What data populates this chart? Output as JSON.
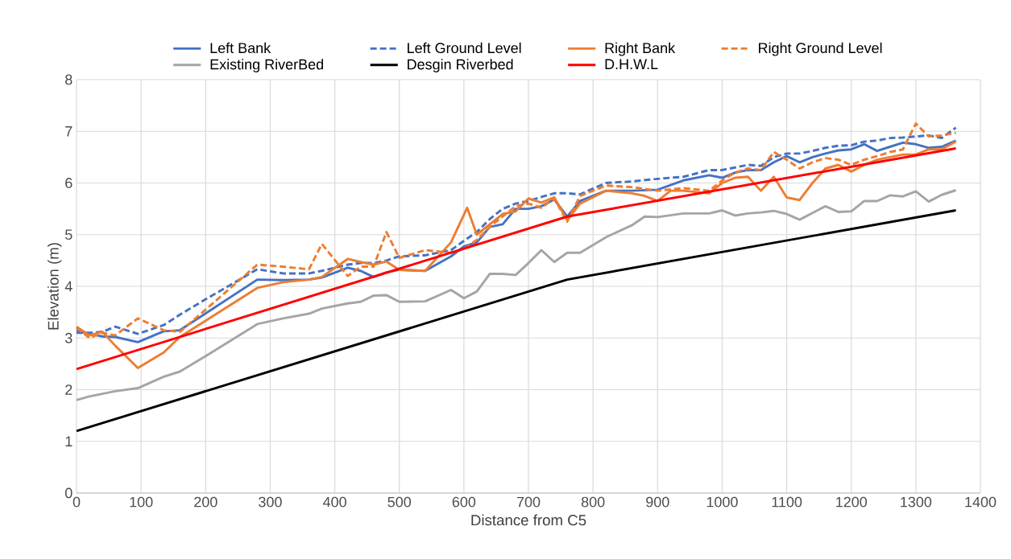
{
  "chart_data": {
    "type": "line",
    "xlabel": "Distance from C5",
    "ylabel": "Elevation (m)",
    "xlim": [
      0,
      1400
    ],
    "xticks": [
      0,
      100,
      200,
      300,
      400,
      500,
      600,
      700,
      800,
      900,
      1000,
      1100,
      1200,
      1300,
      1400
    ],
    "ylim": [
      0,
      8
    ],
    "yticks": [
      0,
      1,
      2,
      3,
      4,
      5,
      6,
      7,
      8
    ],
    "grid": true,
    "legend": "top",
    "marker": "none",
    "series": [
      {
        "name": "Left Bank",
        "color": "#4472c4",
        "line_style": "solid",
        "x": [
          0,
          20,
          40,
          60,
          95,
          135,
          160,
          280,
          320,
          360,
          380,
          420,
          440,
          460,
          480,
          500,
          540,
          580,
          600,
          620,
          640,
          660,
          680,
          700,
          720,
          740,
          760,
          780,
          820,
          860,
          900,
          940,
          980,
          1000,
          1020,
          1040,
          1060,
          1080,
          1100,
          1120,
          1140,
          1160,
          1180,
          1200,
          1220,
          1240,
          1260,
          1280,
          1300,
          1320,
          1340,
          1362
        ],
        "values": [
          3.15,
          3.08,
          3.03,
          3.02,
          2.92,
          3.13,
          3.15,
          4.13,
          4.12,
          4.13,
          4.17,
          4.36,
          4.3,
          4.18,
          4.27,
          4.32,
          4.3,
          4.58,
          4.77,
          4.85,
          5.15,
          5.2,
          5.5,
          5.5,
          5.55,
          5.68,
          5.35,
          5.65,
          5.85,
          5.85,
          5.87,
          6.05,
          6.15,
          6.1,
          6.2,
          6.25,
          6.25,
          6.4,
          6.52,
          6.4,
          6.5,
          6.57,
          6.63,
          6.65,
          6.75,
          6.62,
          6.7,
          6.78,
          6.75,
          6.68,
          6.7,
          6.82
        ]
      },
      {
        "name": "Left Ground Level",
        "color": "#4472c4",
        "line_style": "dashed",
        "x": [
          0,
          20,
          40,
          60,
          95,
          135,
          160,
          200,
          280,
          320,
          360,
          380,
          420,
          440,
          460,
          480,
          500,
          540,
          580,
          600,
          620,
          640,
          660,
          680,
          700,
          720,
          740,
          760,
          780,
          820,
          860,
          900,
          940,
          980,
          1000,
          1020,
          1040,
          1060,
          1080,
          1100,
          1120,
          1140,
          1160,
          1180,
          1200,
          1220,
          1240,
          1260,
          1280,
          1300,
          1320,
          1340,
          1362
        ],
        "values": [
          3.1,
          3.1,
          3.12,
          3.22,
          3.08,
          3.25,
          3.45,
          3.75,
          4.33,
          4.25,
          4.25,
          4.3,
          4.42,
          4.45,
          4.45,
          4.5,
          4.58,
          4.6,
          4.7,
          4.88,
          5.05,
          5.3,
          5.5,
          5.6,
          5.65,
          5.73,
          5.8,
          5.8,
          5.78,
          6.0,
          6.03,
          6.08,
          6.12,
          6.25,
          6.25,
          6.3,
          6.35,
          6.33,
          6.5,
          6.57,
          6.57,
          6.62,
          6.68,
          6.72,
          6.73,
          6.8,
          6.82,
          6.87,
          6.88,
          6.9,
          6.92,
          6.87,
          7.07
        ]
      },
      {
        "name": "Right Bank",
        "color": "#ed7d31",
        "line_style": "solid",
        "x": [
          0,
          20,
          40,
          60,
          95,
          135,
          160,
          280,
          320,
          360,
          380,
          420,
          440,
          460,
          480,
          500,
          540,
          580,
          605,
          620,
          640,
          660,
          680,
          700,
          720,
          740,
          760,
          780,
          820,
          860,
          880,
          900,
          920,
          940,
          980,
          1000,
          1020,
          1040,
          1060,
          1080,
          1100,
          1120,
          1140,
          1160,
          1180,
          1200,
          1220,
          1240,
          1260,
          1280,
          1300,
          1320,
          1340,
          1362
        ],
        "values": [
          3.22,
          3.05,
          3.12,
          2.85,
          2.42,
          2.72,
          3.02,
          3.97,
          4.08,
          4.13,
          4.18,
          4.53,
          4.47,
          4.42,
          4.48,
          4.32,
          4.3,
          4.85,
          5.52,
          5.0,
          5.2,
          5.4,
          5.45,
          5.7,
          5.62,
          5.72,
          5.28,
          5.6,
          5.85,
          5.8,
          5.75,
          5.65,
          5.85,
          5.85,
          5.8,
          6.0,
          6.1,
          6.12,
          5.85,
          6.12,
          5.72,
          5.67,
          6.0,
          6.28,
          6.35,
          6.22,
          6.35,
          6.45,
          6.5,
          6.55,
          6.55,
          6.65,
          6.65,
          6.8
        ]
      },
      {
        "name": "Right Ground Level",
        "color": "#ed7d31",
        "line_style": "dashed",
        "x": [
          0,
          20,
          40,
          60,
          95,
          135,
          160,
          200,
          280,
          320,
          360,
          380,
          420,
          440,
          460,
          480,
          500,
          540,
          580,
          600,
          620,
          640,
          660,
          680,
          700,
          720,
          740,
          760,
          780,
          820,
          860,
          900,
          940,
          980,
          1000,
          1020,
          1040,
          1060,
          1080,
          1100,
          1120,
          1140,
          1160,
          1180,
          1200,
          1220,
          1240,
          1260,
          1280,
          1300,
          1320,
          1340,
          1362
        ],
        "values": [
          3.2,
          3.0,
          3.1,
          3.05,
          3.38,
          3.15,
          3.12,
          3.55,
          4.42,
          4.38,
          4.33,
          4.82,
          4.2,
          4.38,
          4.38,
          5.05,
          4.55,
          4.7,
          4.65,
          4.72,
          4.9,
          5.15,
          5.35,
          5.55,
          5.6,
          5.52,
          5.7,
          5.25,
          5.75,
          5.95,
          5.92,
          5.85,
          5.9,
          5.85,
          6.05,
          6.2,
          6.28,
          6.25,
          6.6,
          6.45,
          6.28,
          6.4,
          6.48,
          6.45,
          6.35,
          6.45,
          6.52,
          6.6,
          6.65,
          7.15,
          6.9,
          6.92,
          6.97
        ]
      },
      {
        "name": "Existing RiverBed",
        "color": "#a5a5a5",
        "line_style": "solid",
        "x": [
          0,
          20,
          60,
          95,
          135,
          160,
          200,
          280,
          320,
          360,
          380,
          420,
          440,
          460,
          480,
          500,
          540,
          580,
          600,
          620,
          640,
          660,
          680,
          700,
          720,
          740,
          760,
          780,
          820,
          860,
          880,
          900,
          940,
          980,
          1000,
          1020,
          1040,
          1060,
          1080,
          1100,
          1120,
          1140,
          1160,
          1180,
          1200,
          1220,
          1240,
          1260,
          1280,
          1300,
          1320,
          1340,
          1362
        ],
        "values": [
          1.8,
          1.87,
          1.97,
          2.03,
          2.25,
          2.35,
          2.65,
          3.27,
          3.38,
          3.47,
          3.57,
          3.67,
          3.7,
          3.82,
          3.83,
          3.7,
          3.71,
          3.93,
          3.77,
          3.9,
          4.24,
          4.24,
          4.22,
          4.45,
          4.7,
          4.47,
          4.65,
          4.65,
          4.95,
          5.18,
          5.35,
          5.34,
          5.41,
          5.41,
          5.47,
          5.37,
          5.41,
          5.43,
          5.46,
          5.4,
          5.29,
          5.42,
          5.55,
          5.44,
          5.45,
          5.65,
          5.65,
          5.76,
          5.74,
          5.84,
          5.64,
          5.77,
          5.86
        ]
      },
      {
        "name": "Desgin Riverbed",
        "color": "#000000",
        "line_style": "solid",
        "x": [
          0,
          760,
          1362
        ],
        "values": [
          1.2,
          4.13,
          5.47
        ]
      },
      {
        "name": "D.H.W.L",
        "color": "#ff0000",
        "line_style": "solid",
        "x": [
          0,
          760,
          1362
        ],
        "values": [
          2.4,
          5.35,
          6.67
        ]
      }
    ]
  }
}
